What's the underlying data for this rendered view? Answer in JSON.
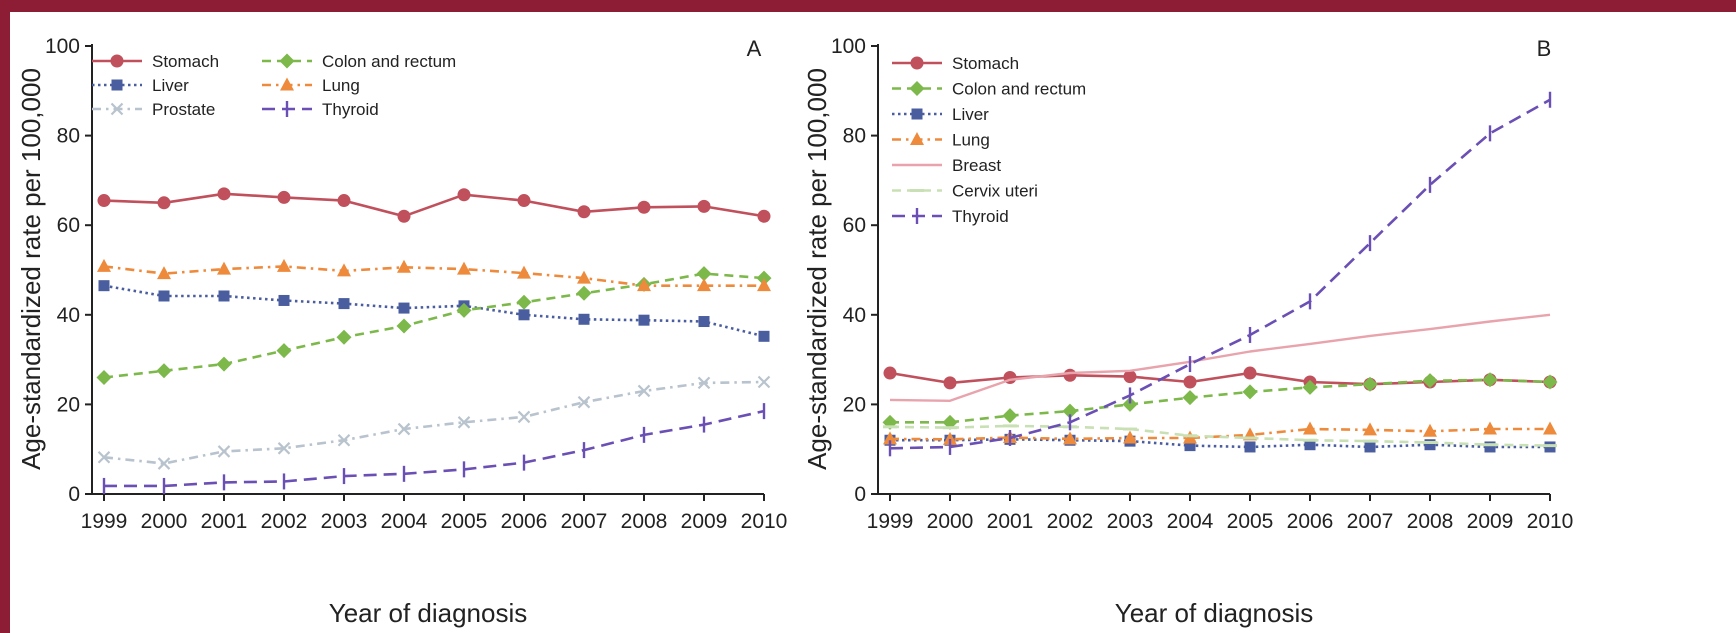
{
  "chart_data": [
    {
      "type": "line",
      "panel_label": "A",
      "xlabel": "Year of diagnosis",
      "ylabel": "Age-standardized rate per 100,000",
      "ylim": [
        0,
        100
      ],
      "yticks": [
        "0",
        "20",
        "40",
        "60",
        "80",
        "100"
      ],
      "x": [
        "1999",
        "2000",
        "2001",
        "2002",
        "2003",
        "2004",
        "2005",
        "2006",
        "2007",
        "2008",
        "2009",
        "2010"
      ],
      "legend_position": "top-left",
      "grid": false,
      "series": [
        {
          "name": "Stomach",
          "color": "#c0505c",
          "dash": "solid",
          "marker": "circle",
          "values": [
            65.5,
            65,
            67,
            66.2,
            65.5,
            62,
            66.8,
            65.5,
            63,
            64,
            64.2,
            62
          ]
        },
        {
          "name": "Liver",
          "color": "#4a5d9e",
          "dash": "dotted",
          "marker": "square",
          "values": [
            46.5,
            44.2,
            44.2,
            43.2,
            42.5,
            41.5,
            42,
            40,
            39,
            38.8,
            38.5,
            35.2
          ]
        },
        {
          "name": "Prostate",
          "color": "#b8c3ce",
          "dash": "dashdot",
          "marker": "x",
          "values": [
            8.2,
            6.8,
            9.5,
            10.2,
            12,
            14.5,
            16,
            17.2,
            20.5,
            23,
            24.8,
            25
          ]
        },
        {
          "name": "Colon and rectum",
          "color": "#7cb84a",
          "dash": "dashed",
          "marker": "diamond",
          "values": [
            26,
            27.5,
            29,
            32,
            35,
            37.5,
            41,
            42.8,
            44.8,
            46.8,
            49.2,
            48.2
          ]
        },
        {
          "name": "Lung",
          "color": "#ee8a3c",
          "dash": "dashdot",
          "marker": "triangle",
          "values": [
            50.8,
            49.2,
            50.2,
            50.8,
            49.8,
            50.6,
            50.2,
            49.3,
            48.2,
            46.5,
            46.5,
            46.5
          ]
        },
        {
          "name": "Thyroid",
          "color": "#6a4fb4",
          "dash": "longdash",
          "marker": "plus",
          "values": [
            1.8,
            1.8,
            2.6,
            2.8,
            4,
            4.5,
            5.5,
            7,
            9.8,
            13.2,
            15.5,
            18.5
          ]
        }
      ]
    },
    {
      "type": "line",
      "panel_label": "B",
      "xlabel": "Year of diagnosis",
      "ylabel": "Age-standardized rate per 100,000",
      "ylim": [
        0,
        100
      ],
      "yticks": [
        "0",
        "20",
        "40",
        "60",
        "80",
        "100"
      ],
      "x": [
        "1999",
        "2000",
        "2001",
        "2002",
        "2003",
        "2004",
        "2005",
        "2006",
        "2007",
        "2008",
        "2009",
        "2010"
      ],
      "legend_position": "top-left",
      "grid": false,
      "series": [
        {
          "name": "Stomach",
          "color": "#c0505c",
          "dash": "solid",
          "marker": "circle",
          "values": [
            27,
            24.8,
            26,
            26.5,
            26.2,
            25,
            27,
            25,
            24.5,
            25,
            25.5,
            25
          ]
        },
        {
          "name": "Colon and rectum",
          "color": "#7cb84a",
          "dash": "dashed",
          "marker": "diamond",
          "values": [
            16,
            16,
            17.5,
            18.5,
            20,
            21.5,
            22.8,
            23.8,
            24.5,
            25.3,
            25.5,
            25
          ]
        },
        {
          "name": "Liver",
          "color": "#4a5d9e",
          "dash": "dotted",
          "marker": "square",
          "values": [
            12,
            12,
            12.2,
            12,
            11.8,
            10.8,
            10.5,
            11,
            10.5,
            11,
            10.5,
            10.5
          ]
        },
        {
          "name": "Lung",
          "color": "#ee8a3c",
          "dash": "dashdot",
          "marker": "triangle",
          "values": [
            12.3,
            12.2,
            12.6,
            12.3,
            12.5,
            12.5,
            13.2,
            14.5,
            14.3,
            14,
            14.5,
            14.5
          ]
        },
        {
          "name": "Breast",
          "color": "#e8a3ac",
          "dash": "solid",
          "marker": "none",
          "values": [
            21,
            20.8,
            25.5,
            27,
            27.5,
            29.5,
            31.8,
            33.5,
            35.3,
            36.8,
            38.5,
            40
          ]
        },
        {
          "name": "Cervix uteri",
          "color": "#c8e0b4",
          "dash": "dashed",
          "marker": "dash",
          "values": [
            15,
            14.8,
            15.2,
            15,
            14.5,
            13,
            12.5,
            12,
            11.8,
            11.5,
            11,
            10.8
          ]
        },
        {
          "name": "Thyroid",
          "color": "#6a4fb4",
          "dash": "longdash",
          "marker": "plus",
          "values": [
            10.2,
            10.5,
            12.5,
            16,
            22,
            29,
            35.5,
            43,
            56,
            69,
            80.5,
            88
          ]
        }
      ]
    }
  ]
}
